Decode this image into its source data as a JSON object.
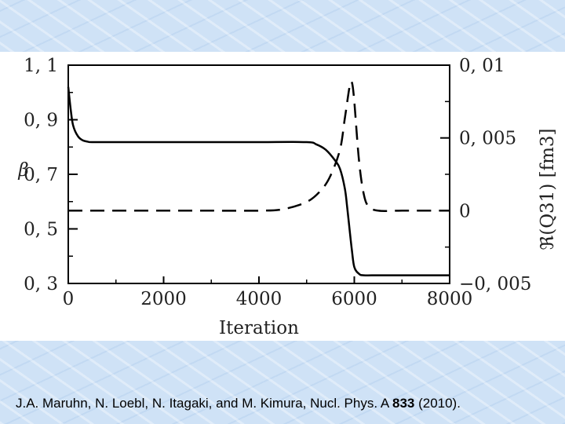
{
  "citation": {
    "before": "J.A. Maruhn, N. Loebl, N. Itagaki, and M. Kimura, Nucl. Phys. A ",
    "bold": "833",
    "after": "  (2010)."
  },
  "chart_data": {
    "type": "line",
    "xlabel": "Iteration",
    "ylabel_left": "β",
    "ylabel_right": "ℜ(Q31) [fm3]",
    "xlim": [
      0,
      8000
    ],
    "ylim_left": [
      0.3,
      1.1
    ],
    "ylim_right": [
      -0.005,
      0.01
    ],
    "x_ticks": [
      "0",
      "2000",
      "4000",
      "6000",
      "8000"
    ],
    "y_left_ticks": [
      "0, 3",
      "0, 5",
      "0, 7",
      "0, 9",
      "1, 1"
    ],
    "y_right_ticks": [
      "−0, 005",
      "0",
      "0, 005",
      "0, 01"
    ],
    "grid": false,
    "series": [
      {
        "axis": "left",
        "style": "solid",
        "color": "#000000",
        "x": [
          0,
          50,
          100,
          200,
          300,
          400,
          500,
          1000,
          2000,
          3000,
          4000,
          5000,
          5200,
          5400,
          5600,
          5700,
          5800,
          5850,
          5900,
          5950,
          6000,
          6100,
          6200,
          6500,
          7000,
          8000
        ],
        "y": [
          1.02,
          0.94,
          0.88,
          0.84,
          0.825,
          0.82,
          0.818,
          0.818,
          0.818,
          0.818,
          0.818,
          0.818,
          0.81,
          0.79,
          0.75,
          0.72,
          0.65,
          0.58,
          0.5,
          0.42,
          0.36,
          0.335,
          0.33,
          0.33,
          0.33,
          0.33
        ]
      },
      {
        "axis": "right",
        "style": "dashed",
        "color": "#000000",
        "x": [
          0,
          1000,
          2000,
          3000,
          4000,
          4500,
          5000,
          5300,
          5500,
          5700,
          5800,
          5900,
          5950,
          6000,
          6100,
          6200,
          6300,
          6500,
          7000,
          8000
        ],
        "y": [
          0.0,
          0.0,
          0.0,
          0.0,
          0.0,
          0.0001,
          0.0006,
          0.0014,
          0.0024,
          0.0042,
          0.0063,
          0.0085,
          0.0088,
          0.0075,
          0.0034,
          0.0011,
          0.0003,
          0.0,
          0.0,
          0.0
        ]
      }
    ]
  }
}
